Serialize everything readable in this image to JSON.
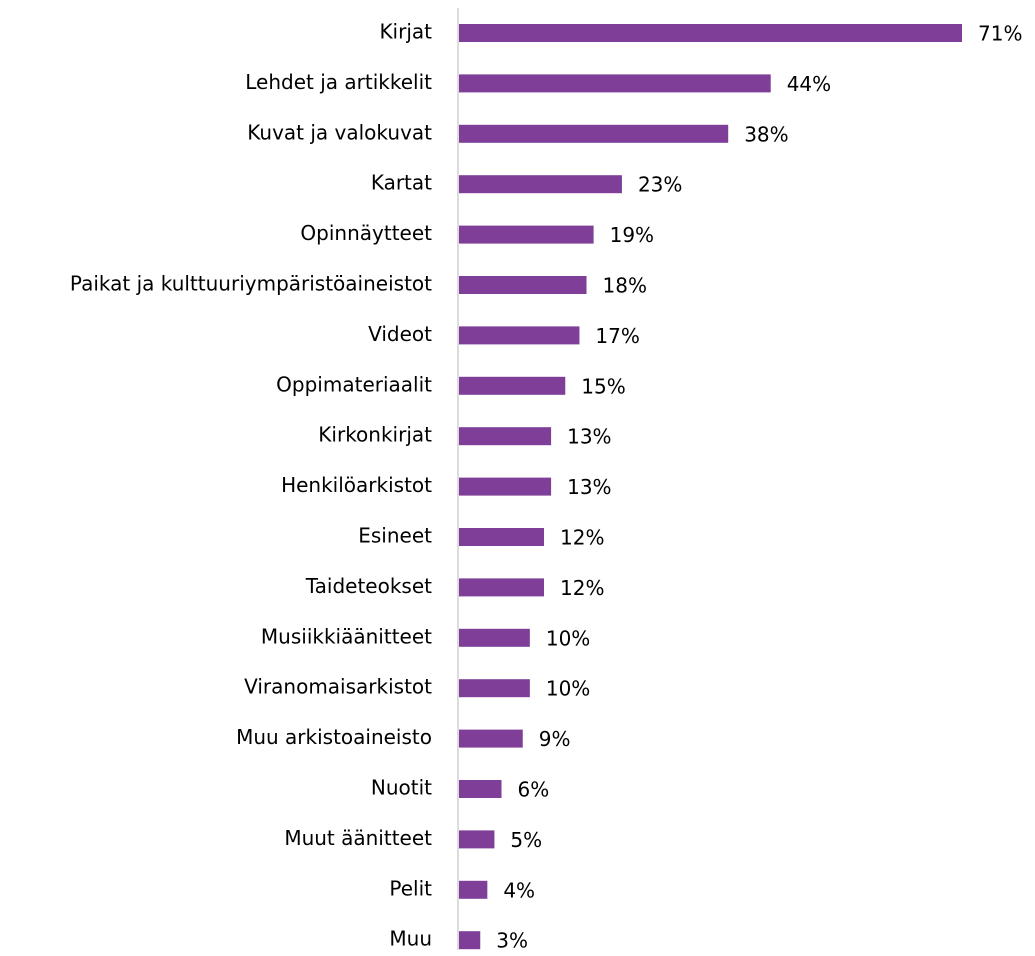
{
  "chart_data": {
    "type": "bar",
    "orientation": "horizontal",
    "categories": [
      "Kirjat",
      "Lehdet ja artikkelit",
      "Kuvat ja valokuvat",
      "Kartat",
      "Opinnäytteet",
      "Paikat ja kulttuuriympäristöaineistot",
      "Videot",
      "Oppimateriaalit",
      "Kirkonkirjat",
      "Henkilöarkistot",
      "Esineet",
      "Taideteokset",
      "Musiikkiäänitteet",
      "Viranomaisarkistot",
      "Muu arkistoaineisto",
      "Nuotit",
      "Muut äänitteet",
      "Pelit",
      "Muu"
    ],
    "values": [
      71,
      44,
      38,
      23,
      19,
      18,
      17,
      15,
      13,
      13,
      12,
      12,
      10,
      10,
      9,
      6,
      5,
      4,
      3
    ],
    "value_labels": [
      "71%",
      "44%",
      "38%",
      "23%",
      "19%",
      "18%",
      "17%",
      "15%",
      "13%",
      "13%",
      "12%",
      "12%",
      "10%",
      "10%",
      "9%",
      "6%",
      "5%",
      "4%",
      "3%"
    ],
    "color": "#7f3f98"
  }
}
